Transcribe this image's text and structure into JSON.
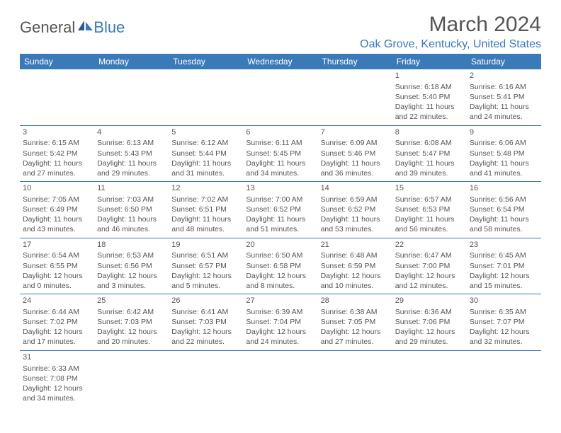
{
  "brand": {
    "general": "General",
    "blue": "Blue"
  },
  "title": "March 2024",
  "location": "Oak Grove, Kentucky, United States",
  "colors": {
    "accent": "#3a7ab8",
    "text": "#555555",
    "bg": "#ffffff"
  },
  "weekdays": [
    "Sunday",
    "Monday",
    "Tuesday",
    "Wednesday",
    "Thursday",
    "Friday",
    "Saturday"
  ],
  "weeks": [
    [
      null,
      null,
      null,
      null,
      null,
      {
        "n": "1",
        "sr": "Sunrise: 6:18 AM",
        "ss": "Sunset: 5:40 PM",
        "dl1": "Daylight: 11 hours",
        "dl2": "and 22 minutes."
      },
      {
        "n": "2",
        "sr": "Sunrise: 6:16 AM",
        "ss": "Sunset: 5:41 PM",
        "dl1": "Daylight: 11 hours",
        "dl2": "and 24 minutes."
      }
    ],
    [
      {
        "n": "3",
        "sr": "Sunrise: 6:15 AM",
        "ss": "Sunset: 5:42 PM",
        "dl1": "Daylight: 11 hours",
        "dl2": "and 27 minutes."
      },
      {
        "n": "4",
        "sr": "Sunrise: 6:13 AM",
        "ss": "Sunset: 5:43 PM",
        "dl1": "Daylight: 11 hours",
        "dl2": "and 29 minutes."
      },
      {
        "n": "5",
        "sr": "Sunrise: 6:12 AM",
        "ss": "Sunset: 5:44 PM",
        "dl1": "Daylight: 11 hours",
        "dl2": "and 31 minutes."
      },
      {
        "n": "6",
        "sr": "Sunrise: 6:11 AM",
        "ss": "Sunset: 5:45 PM",
        "dl1": "Daylight: 11 hours",
        "dl2": "and 34 minutes."
      },
      {
        "n": "7",
        "sr": "Sunrise: 6:09 AM",
        "ss": "Sunset: 5:46 PM",
        "dl1": "Daylight: 11 hours",
        "dl2": "and 36 minutes."
      },
      {
        "n": "8",
        "sr": "Sunrise: 6:08 AM",
        "ss": "Sunset: 5:47 PM",
        "dl1": "Daylight: 11 hours",
        "dl2": "and 39 minutes."
      },
      {
        "n": "9",
        "sr": "Sunrise: 6:06 AM",
        "ss": "Sunset: 5:48 PM",
        "dl1": "Daylight: 11 hours",
        "dl2": "and 41 minutes."
      }
    ],
    [
      {
        "n": "10",
        "sr": "Sunrise: 7:05 AM",
        "ss": "Sunset: 6:49 PM",
        "dl1": "Daylight: 11 hours",
        "dl2": "and 43 minutes."
      },
      {
        "n": "11",
        "sr": "Sunrise: 7:03 AM",
        "ss": "Sunset: 6:50 PM",
        "dl1": "Daylight: 11 hours",
        "dl2": "and 46 minutes."
      },
      {
        "n": "12",
        "sr": "Sunrise: 7:02 AM",
        "ss": "Sunset: 6:51 PM",
        "dl1": "Daylight: 11 hours",
        "dl2": "and 48 minutes."
      },
      {
        "n": "13",
        "sr": "Sunrise: 7:00 AM",
        "ss": "Sunset: 6:52 PM",
        "dl1": "Daylight: 11 hours",
        "dl2": "and 51 minutes."
      },
      {
        "n": "14",
        "sr": "Sunrise: 6:59 AM",
        "ss": "Sunset: 6:52 PM",
        "dl1": "Daylight: 11 hours",
        "dl2": "and 53 minutes."
      },
      {
        "n": "15",
        "sr": "Sunrise: 6:57 AM",
        "ss": "Sunset: 6:53 PM",
        "dl1": "Daylight: 11 hours",
        "dl2": "and 56 minutes."
      },
      {
        "n": "16",
        "sr": "Sunrise: 6:56 AM",
        "ss": "Sunset: 6:54 PM",
        "dl1": "Daylight: 11 hours",
        "dl2": "and 58 minutes."
      }
    ],
    [
      {
        "n": "17",
        "sr": "Sunrise: 6:54 AM",
        "ss": "Sunset: 6:55 PM",
        "dl1": "Daylight: 12 hours",
        "dl2": "and 0 minutes."
      },
      {
        "n": "18",
        "sr": "Sunrise: 6:53 AM",
        "ss": "Sunset: 6:56 PM",
        "dl1": "Daylight: 12 hours",
        "dl2": "and 3 minutes."
      },
      {
        "n": "19",
        "sr": "Sunrise: 6:51 AM",
        "ss": "Sunset: 6:57 PM",
        "dl1": "Daylight: 12 hours",
        "dl2": "and 5 minutes."
      },
      {
        "n": "20",
        "sr": "Sunrise: 6:50 AM",
        "ss": "Sunset: 6:58 PM",
        "dl1": "Daylight: 12 hours",
        "dl2": "and 8 minutes."
      },
      {
        "n": "21",
        "sr": "Sunrise: 6:48 AM",
        "ss": "Sunset: 6:59 PM",
        "dl1": "Daylight: 12 hours",
        "dl2": "and 10 minutes."
      },
      {
        "n": "22",
        "sr": "Sunrise: 6:47 AM",
        "ss": "Sunset: 7:00 PM",
        "dl1": "Daylight: 12 hours",
        "dl2": "and 12 minutes."
      },
      {
        "n": "23",
        "sr": "Sunrise: 6:45 AM",
        "ss": "Sunset: 7:01 PM",
        "dl1": "Daylight: 12 hours",
        "dl2": "and 15 minutes."
      }
    ],
    [
      {
        "n": "24",
        "sr": "Sunrise: 6:44 AM",
        "ss": "Sunset: 7:02 PM",
        "dl1": "Daylight: 12 hours",
        "dl2": "and 17 minutes."
      },
      {
        "n": "25",
        "sr": "Sunrise: 6:42 AM",
        "ss": "Sunset: 7:03 PM",
        "dl1": "Daylight: 12 hours",
        "dl2": "and 20 minutes."
      },
      {
        "n": "26",
        "sr": "Sunrise: 6:41 AM",
        "ss": "Sunset: 7:03 PM",
        "dl1": "Daylight: 12 hours",
        "dl2": "and 22 minutes."
      },
      {
        "n": "27",
        "sr": "Sunrise: 6:39 AM",
        "ss": "Sunset: 7:04 PM",
        "dl1": "Daylight: 12 hours",
        "dl2": "and 24 minutes."
      },
      {
        "n": "28",
        "sr": "Sunrise: 6:38 AM",
        "ss": "Sunset: 7:05 PM",
        "dl1": "Daylight: 12 hours",
        "dl2": "and 27 minutes."
      },
      {
        "n": "29",
        "sr": "Sunrise: 6:36 AM",
        "ss": "Sunset: 7:06 PM",
        "dl1": "Daylight: 12 hours",
        "dl2": "and 29 minutes."
      },
      {
        "n": "30",
        "sr": "Sunrise: 6:35 AM",
        "ss": "Sunset: 7:07 PM",
        "dl1": "Daylight: 12 hours",
        "dl2": "and 32 minutes."
      }
    ],
    [
      {
        "n": "31",
        "sr": "Sunrise: 6:33 AM",
        "ss": "Sunset: 7:08 PM",
        "dl1": "Daylight: 12 hours",
        "dl2": "and 34 minutes."
      },
      null,
      null,
      null,
      null,
      null,
      null
    ]
  ]
}
